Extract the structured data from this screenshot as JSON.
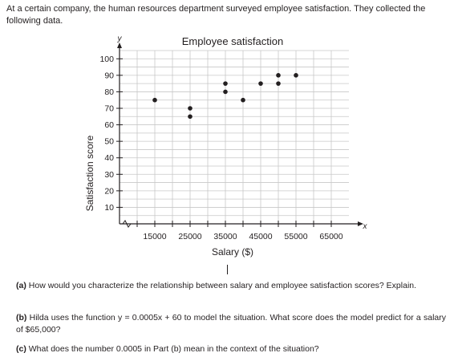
{
  "intro": "At a certain company, the human resources department surveyed employee satisfaction. They collected the following data.",
  "questions": [
    {
      "label": "(a)",
      "text": "How would you characterize the relationship between salary and employee satisfaction scores? Explain."
    },
    {
      "label": "(b)",
      "text": "Hilda uses the function y = 0.0005x + 60 to model the situation. What score does the model predict for a salary of $65,000?"
    },
    {
      "label": "(c)",
      "text": "What does the number 0.0005 in Part (b) mean in the context of the situation?"
    }
  ],
  "chart_data": {
    "type": "scatter",
    "title": "Employee satisfaction",
    "xlabel": "Salary ($)",
    "ylabel": "Satisfaction score",
    "x_axis_letter": "x",
    "y_axis_letter": "y",
    "xlim": [
      5000,
      70000
    ],
    "ylim": [
      0,
      105
    ],
    "x_ticks": [
      15000,
      25000,
      35000,
      45000,
      55000,
      65000
    ],
    "y_ticks": [
      10,
      20,
      30,
      40,
      50,
      60,
      70,
      80,
      90,
      100
    ],
    "grid": true,
    "x": [
      15000,
      25000,
      25000,
      35000,
      35000,
      40000,
      45000,
      50000,
      50000,
      55000
    ],
    "y": [
      75,
      70,
      65,
      85,
      80,
      75,
      85,
      90,
      85,
      90
    ]
  }
}
